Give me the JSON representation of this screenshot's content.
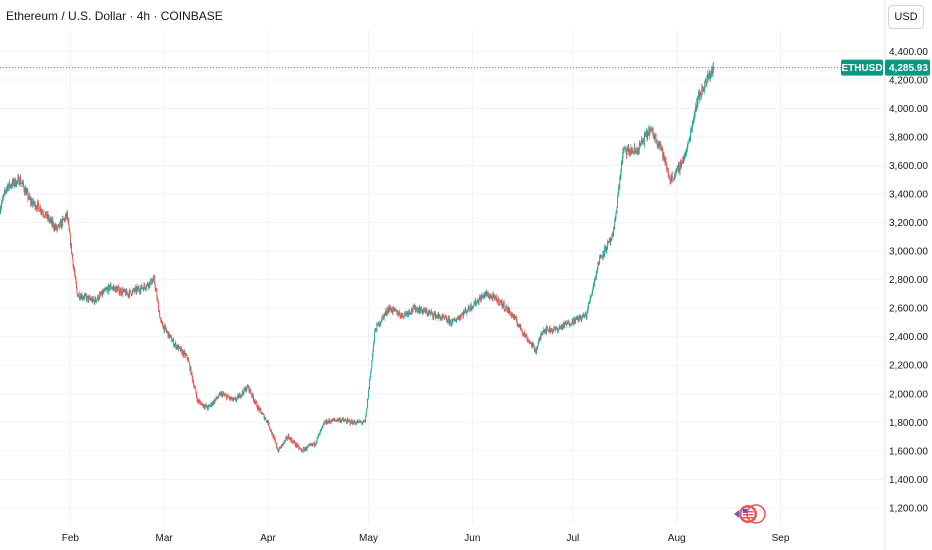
{
  "header": {
    "title": "Ethereum / U.S. Dollar · 4h · COINBASE",
    "currency_button": "USD"
  },
  "colors": {
    "up": "#26a69a",
    "down": "#ef5350",
    "grid": "#f0f3fa",
    "badge_bg": "#089981"
  },
  "chart_data": {
    "type": "candlestick",
    "symbol_label": "ETHUSD",
    "last_price": 4285.93,
    "last_price_label": "4,285.93",
    "y_ticks": [
      "1,200.00",
      "1,400.00",
      "1,600.00",
      "1,800.00",
      "2,000.00",
      "2,200.00",
      "2,400.00",
      "2,600.00",
      "2,800.00",
      "3,000.00",
      "3,200.00",
      "3,400.00",
      "3,600.00",
      "3,800.00",
      "4,000.00",
      "4,200.00",
      "4,400.00"
    ],
    "y_tick_values": [
      1200,
      1400,
      1600,
      1800,
      2000,
      2200,
      2400,
      2600,
      2800,
      3000,
      3200,
      3400,
      3600,
      3800,
      4000,
      4200,
      4400
    ],
    "x_ticks": [
      "Feb",
      "Mar",
      "Apr",
      "May",
      "Jun",
      "Jul",
      "Aug",
      "Sep"
    ],
    "x_tick_days": [
      31,
      59,
      90,
      120,
      151,
      181,
      212,
      243
    ],
    "close_path": [
      {
        "day": 10,
        "close": 3300
      },
      {
        "day": 12,
        "close": 3450
      },
      {
        "day": 16,
        "close": 3500
      },
      {
        "day": 19,
        "close": 3350
      },
      {
        "day": 22,
        "close": 3300
      },
      {
        "day": 27,
        "close": 3150
      },
      {
        "day": 30,
        "close": 3250
      },
      {
        "day": 33,
        "close": 2700
      },
      {
        "day": 38,
        "close": 2650
      },
      {
        "day": 43,
        "close": 2750
      },
      {
        "day": 48,
        "close": 2700
      },
      {
        "day": 53,
        "close": 2750
      },
      {
        "day": 56,
        "close": 2800
      },
      {
        "day": 58,
        "close": 2500
      },
      {
        "day": 62,
        "close": 2350
      },
      {
        "day": 66,
        "close": 2250
      },
      {
        "day": 69,
        "close": 1950
      },
      {
        "day": 72,
        "close": 1900
      },
      {
        "day": 76,
        "close": 2000
      },
      {
        "day": 80,
        "close": 1950
      },
      {
        "day": 84,
        "close": 2050
      },
      {
        "day": 87,
        "close": 1900
      },
      {
        "day": 90,
        "close": 1800
      },
      {
        "day": 93,
        "close": 1600
      },
      {
        "day": 96,
        "close": 1700
      },
      {
        "day": 100,
        "close": 1600
      },
      {
        "day": 104,
        "close": 1650
      },
      {
        "day": 107,
        "close": 1800
      },
      {
        "day": 111,
        "close": 1820
      },
      {
        "day": 115,
        "close": 1800
      },
      {
        "day": 119,
        "close": 1800
      },
      {
        "day": 122,
        "close": 2450
      },
      {
        "day": 126,
        "close": 2600
      },
      {
        "day": 130,
        "close": 2550
      },
      {
        "day": 134,
        "close": 2600
      },
      {
        "day": 140,
        "close": 2550
      },
      {
        "day": 145,
        "close": 2500
      },
      {
        "day": 150,
        "close": 2600
      },
      {
        "day": 155,
        "close": 2700
      },
      {
        "day": 159,
        "close": 2650
      },
      {
        "day": 163,
        "close": 2550
      },
      {
        "day": 167,
        "close": 2400
      },
      {
        "day": 170,
        "close": 2300
      },
      {
        "day": 172,
        "close": 2450
      },
      {
        "day": 176,
        "close": 2450
      },
      {
        "day": 180,
        "close": 2500
      },
      {
        "day": 185,
        "close": 2550
      },
      {
        "day": 189,
        "close": 2950
      },
      {
        "day": 193,
        "close": 3100
      },
      {
        "day": 196,
        "close": 3700
      },
      {
        "day": 200,
        "close": 3700
      },
      {
        "day": 204,
        "close": 3850
      },
      {
        "day": 207,
        "close": 3750
      },
      {
        "day": 210,
        "close": 3500
      },
      {
        "day": 212,
        "close": 3550
      },
      {
        "day": 215,
        "close": 3700
      },
      {
        "day": 218,
        "close": 4050
      },
      {
        "day": 221,
        "close": 4200
      },
      {
        "day": 223,
        "close": 4285.93
      }
    ],
    "ylim": [
      1150,
      4480
    ],
    "grid": true
  }
}
